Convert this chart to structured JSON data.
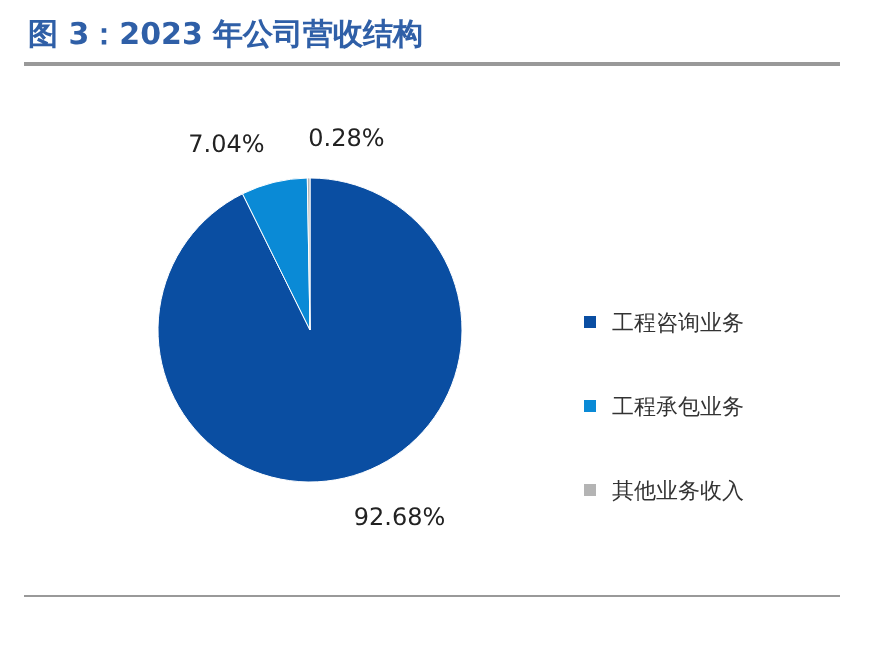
{
  "chart_data": {
    "type": "pie",
    "title": "图 3：2023 年公司营收结构",
    "categories": [
      "工程咨询业务",
      "工程承包业务",
      "其他业务收入"
    ],
    "values": [
      92.68,
      7.04,
      0.28
    ],
    "colors": [
      "#0a4ea2",
      "#0a8ad6",
      "#b4b4b4"
    ],
    "value_labels": [
      "92.68%",
      "7.04%",
      "0.28%"
    ],
    "legend": "right"
  }
}
